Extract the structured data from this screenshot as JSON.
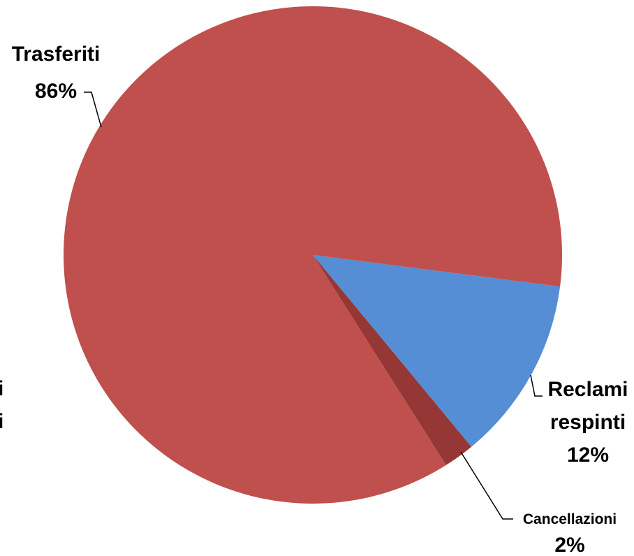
{
  "chart_data": {
    "type": "pie",
    "title": "",
    "slices": [
      {
        "label": "Trasferiti",
        "value": 86,
        "value_label": "86%",
        "color": "#C0504D"
      },
      {
        "label": "Reclami respinti",
        "value": 12,
        "value_label": "12%",
        "color": "#558ED5"
      },
      {
        "label": "Cancellazioni",
        "value": 2,
        "value_label": "2%",
        "color": "#953735"
      }
    ],
    "clipped_left_label_lines": [
      "i",
      "i"
    ],
    "leader_line_color": "#000000",
    "background": "#FFFFFF"
  }
}
